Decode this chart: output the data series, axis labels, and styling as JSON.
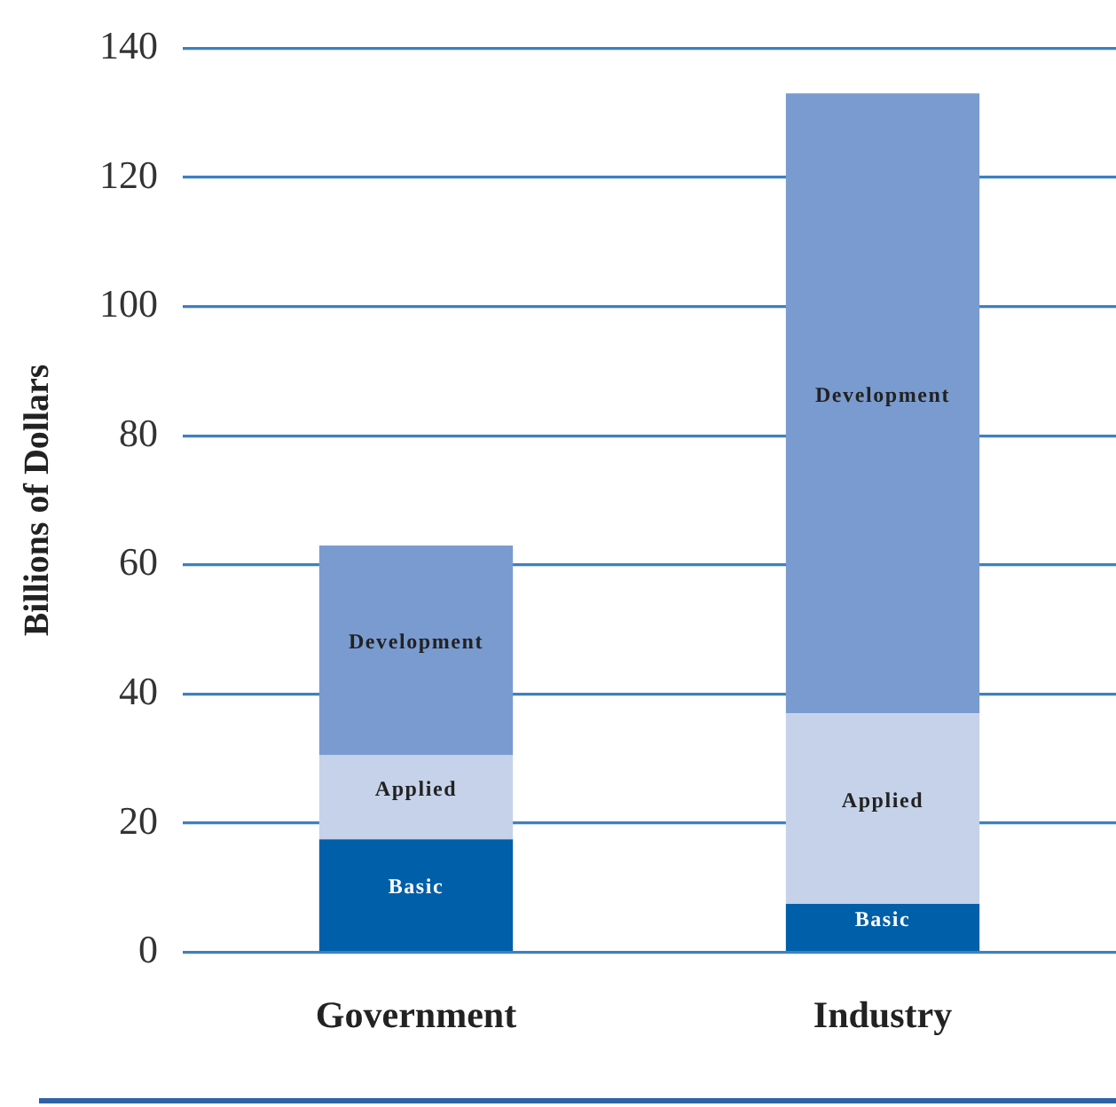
{
  "chart_data": {
    "type": "bar",
    "stacked": true,
    "categories": [
      "Government",
      "Industry"
    ],
    "ylabel": "Billions of Dollars",
    "ylim": [
      0,
      140
    ],
    "yticks": [
      0,
      20,
      40,
      60,
      80,
      100,
      120,
      140
    ],
    "grid": "y",
    "series": [
      {
        "name": "Basic",
        "color": "#005fa9",
        "values": [
          17.5,
          7.5
        ]
      },
      {
        "name": "Applied",
        "color": "#c5d2e9",
        "values": [
          13,
          29.5
        ]
      },
      {
        "name": "Development",
        "color": "#7a9bcf",
        "values": [
          32.5,
          96
        ]
      }
    ]
  }
}
